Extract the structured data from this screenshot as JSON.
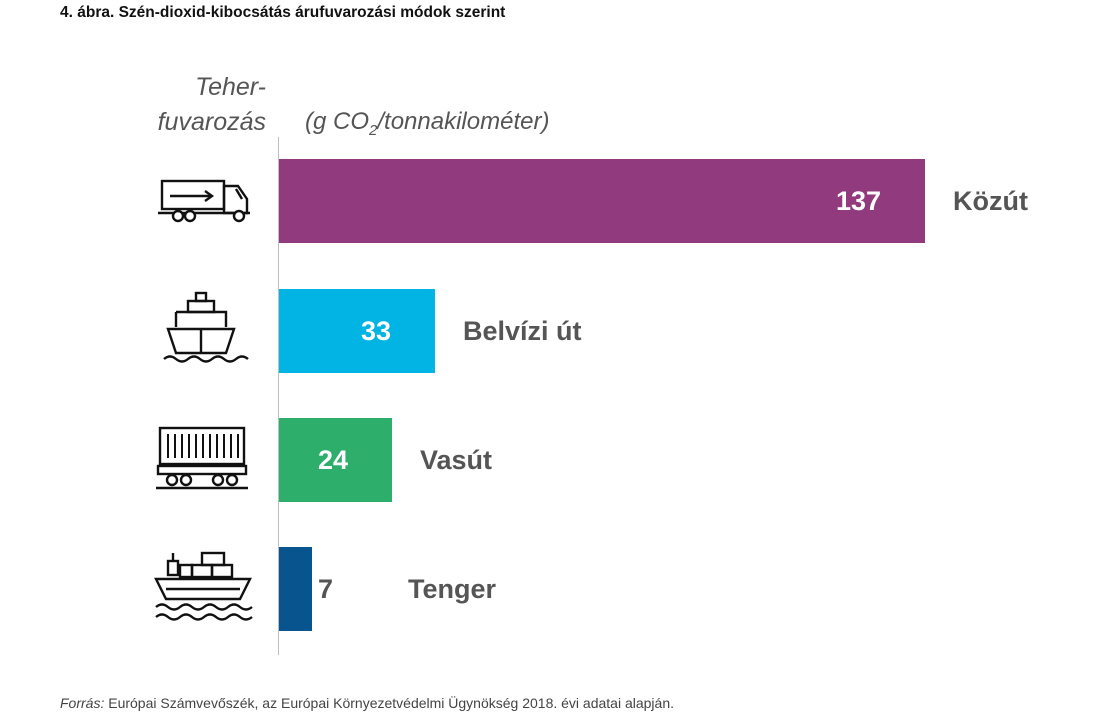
{
  "title": "4. ábra. Szén-dioxid-kibocsátás árufuvarozási módok szerint",
  "category_header_line1": "Teher-",
  "category_header_line2": "fuvarozás",
  "unit_prefix": "(g CO",
  "unit_sub": "2",
  "unit_suffix": "/tonnakilométer)",
  "footer_label": "Forrás:",
  "footer_text": " Európai Számvevőszék, az Európai Környezetvédelmi Ügynökség 2018. évi adatai alapján.",
  "chart_data": {
    "type": "bar",
    "orientation": "horizontal",
    "title": "4. ábra. Szén-dioxid-kibocsátás árufuvarozási módok szerint",
    "ylabel": "Teherfuvarozás",
    "xlabel": "(g CO2/tonnakilométer)",
    "categories": [
      "Közút",
      "Belvízi út",
      "Vasút",
      "Tenger"
    ],
    "values": [
      137,
      33,
      24,
      7
    ],
    "colors": [
      "#913a7e",
      "#02b4e3",
      "#2eae6b",
      "#07548e"
    ],
    "icons": [
      "truck-icon",
      "boat-icon",
      "train-icon",
      "cargo-ship-icon"
    ],
    "xlim": [
      0,
      137
    ],
    "grid": false,
    "legend": "none"
  }
}
